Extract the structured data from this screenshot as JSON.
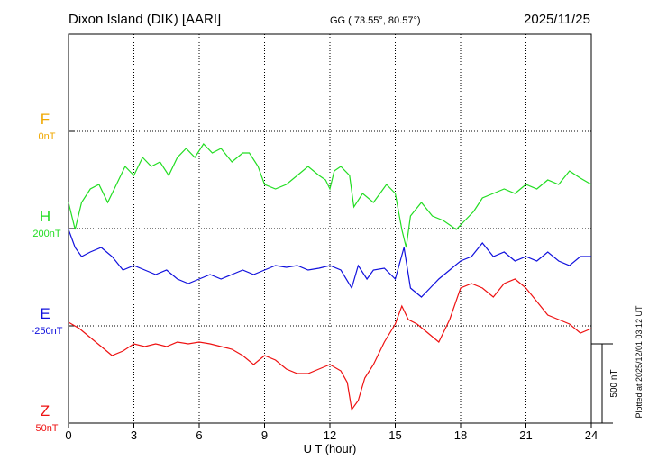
{
  "header": {
    "station": "Dixon Island (DIK)  [AARI]",
    "coords": "GG ( 73.55°,  80.57°)",
    "date": "2025/11/25"
  },
  "footer": {
    "plotted": "Plotted at 2025/12/01 03:12 UT"
  },
  "chart_data": {
    "type": "line",
    "xlabel": "U T (hour)",
    "xlim": [
      0,
      24
    ],
    "xticks": [
      "0",
      "3",
      "6",
      "9",
      "12",
      "15",
      "18",
      "21",
      "24"
    ],
    "scale_label": "500 nT",
    "scale_nT": 500,
    "grid": true,
    "series": [
      {
        "name": "F",
        "offset_label": "0nT",
        "color": "#f0a800",
        "level": 0.75,
        "points": []
      },
      {
        "name": "H",
        "offset_label": "200nT",
        "color": "#22dd22",
        "level": 0.5,
        "points": [
          [
            0,
            225
          ],
          [
            0.3,
            255
          ],
          [
            0.6,
            225
          ],
          [
            1,
            210
          ],
          [
            1.4,
            205
          ],
          [
            1.8,
            225
          ],
          [
            2.2,
            205
          ],
          [
            2.6,
            185
          ],
          [
            3,
            195
          ],
          [
            3.4,
            175
          ],
          [
            3.8,
            185
          ],
          [
            4.2,
            180
          ],
          [
            4.6,
            195
          ],
          [
            5,
            175
          ],
          [
            5.4,
            165
          ],
          [
            5.8,
            175
          ],
          [
            6.2,
            160
          ],
          [
            6.6,
            170
          ],
          [
            7,
            165
          ],
          [
            7.5,
            180
          ],
          [
            8,
            170
          ],
          [
            8.3,
            170
          ],
          [
            8.7,
            185
          ],
          [
            9,
            205
          ],
          [
            9.5,
            210
          ],
          [
            10,
            205
          ],
          [
            10.5,
            195
          ],
          [
            11,
            185
          ],
          [
            11.5,
            195
          ],
          [
            11.8,
            200
          ],
          [
            12,
            210
          ],
          [
            12.2,
            190
          ],
          [
            12.5,
            185
          ],
          [
            12.9,
            195
          ],
          [
            13.1,
            230
          ],
          [
            13.5,
            215
          ],
          [
            14,
            225
          ],
          [
            14.3,
            215
          ],
          [
            14.6,
            205
          ],
          [
            15,
            215
          ],
          [
            15.3,
            255
          ],
          [
            15.5,
            275
          ],
          [
            15.7,
            240
          ],
          [
            16.2,
            225
          ],
          [
            16.7,
            240
          ],
          [
            17.2,
            245
          ],
          [
            17.8,
            255
          ],
          [
            18.2,
            245
          ],
          [
            18.6,
            235
          ],
          [
            19,
            220
          ],
          [
            19.5,
            215
          ],
          [
            20,
            210
          ],
          [
            20.5,
            215
          ],
          [
            21,
            205
          ],
          [
            21.5,
            210
          ],
          [
            22,
            200
          ],
          [
            22.5,
            205
          ],
          [
            23,
            190
          ],
          [
            23.5,
            198
          ],
          [
            24,
            205
          ]
        ]
      },
      {
        "name": "E",
        "offset_label": "-250nT",
        "color": "#1010dd",
        "level": 0.25,
        "points": [
          [
            0,
            255
          ],
          [
            0.3,
            275
          ],
          [
            0.6,
            285
          ],
          [
            1,
            280
          ],
          [
            1.5,
            275
          ],
          [
            2,
            285
          ],
          [
            2.5,
            300
          ],
          [
            3,
            295
          ],
          [
            3.5,
            300
          ],
          [
            4,
            305
          ],
          [
            4.5,
            300
          ],
          [
            5,
            310
          ],
          [
            5.5,
            315
          ],
          [
            6,
            310
          ],
          [
            6.5,
            305
          ],
          [
            7,
            310
          ],
          [
            7.5,
            305
          ],
          [
            8,
            300
          ],
          [
            8.5,
            305
          ],
          [
            9,
            300
          ],
          [
            9.5,
            295
          ],
          [
            10,
            297
          ],
          [
            10.5,
            295
          ],
          [
            11,
            300
          ],
          [
            11.5,
            298
          ],
          [
            12,
            295
          ],
          [
            12.5,
            300
          ],
          [
            13,
            320
          ],
          [
            13.3,
            295
          ],
          [
            13.7,
            310
          ],
          [
            14,
            300
          ],
          [
            14.5,
            298
          ],
          [
            15,
            310
          ],
          [
            15.4,
            275
          ],
          [
            15.7,
            320
          ],
          [
            16.2,
            330
          ],
          [
            16.6,
            320
          ],
          [
            17,
            310
          ],
          [
            17.5,
            300
          ],
          [
            18,
            290
          ],
          [
            18.5,
            285
          ],
          [
            19,
            270
          ],
          [
            19.5,
            285
          ],
          [
            20,
            280
          ],
          [
            20.5,
            290
          ],
          [
            21,
            285
          ],
          [
            21.5,
            290
          ],
          [
            22,
            280
          ],
          [
            22.5,
            290
          ],
          [
            23,
            295
          ],
          [
            23.5,
            285
          ],
          [
            24,
            285
          ]
        ]
      },
      {
        "name": "Z",
        "offset_label": "50nT",
        "color": "#ee1111",
        "level": 0,
        "points": [
          [
            0,
            358
          ],
          [
            0.5,
            365
          ],
          [
            1,
            375
          ],
          [
            1.5,
            385
          ],
          [
            2,
            395
          ],
          [
            2.5,
            390
          ],
          [
            3,
            382
          ],
          [
            3.5,
            385
          ],
          [
            4,
            382
          ],
          [
            4.5,
            385
          ],
          [
            5,
            380
          ],
          [
            5.5,
            382
          ],
          [
            6,
            380
          ],
          [
            6.5,
            382
          ],
          [
            7,
            385
          ],
          [
            7.5,
            388
          ],
          [
            8,
            395
          ],
          [
            8.5,
            405
          ],
          [
            9,
            395
          ],
          [
            9.5,
            400
          ],
          [
            10,
            410
          ],
          [
            10.5,
            415
          ],
          [
            11,
            415
          ],
          [
            11.5,
            410
          ],
          [
            12,
            405
          ],
          [
            12.5,
            412
          ],
          [
            12.8,
            425
          ],
          [
            13,
            455
          ],
          [
            13.3,
            445
          ],
          [
            13.6,
            420
          ],
          [
            14,
            405
          ],
          [
            14.5,
            380
          ],
          [
            15,
            360
          ],
          [
            15.3,
            340
          ],
          [
            15.6,
            355
          ],
          [
            16,
            360
          ],
          [
            16.5,
            370
          ],
          [
            17,
            380
          ],
          [
            17.5,
            355
          ],
          [
            18,
            320
          ],
          [
            18.5,
            315
          ],
          [
            19,
            320
          ],
          [
            19.5,
            330
          ],
          [
            20,
            315
          ],
          [
            20.5,
            310
          ],
          [
            21,
            320
          ],
          [
            21.5,
            335
          ],
          [
            22,
            350
          ],
          [
            22.5,
            355
          ],
          [
            23,
            360
          ],
          [
            23.5,
            370
          ],
          [
            24,
            365
          ]
        ]
      }
    ]
  }
}
